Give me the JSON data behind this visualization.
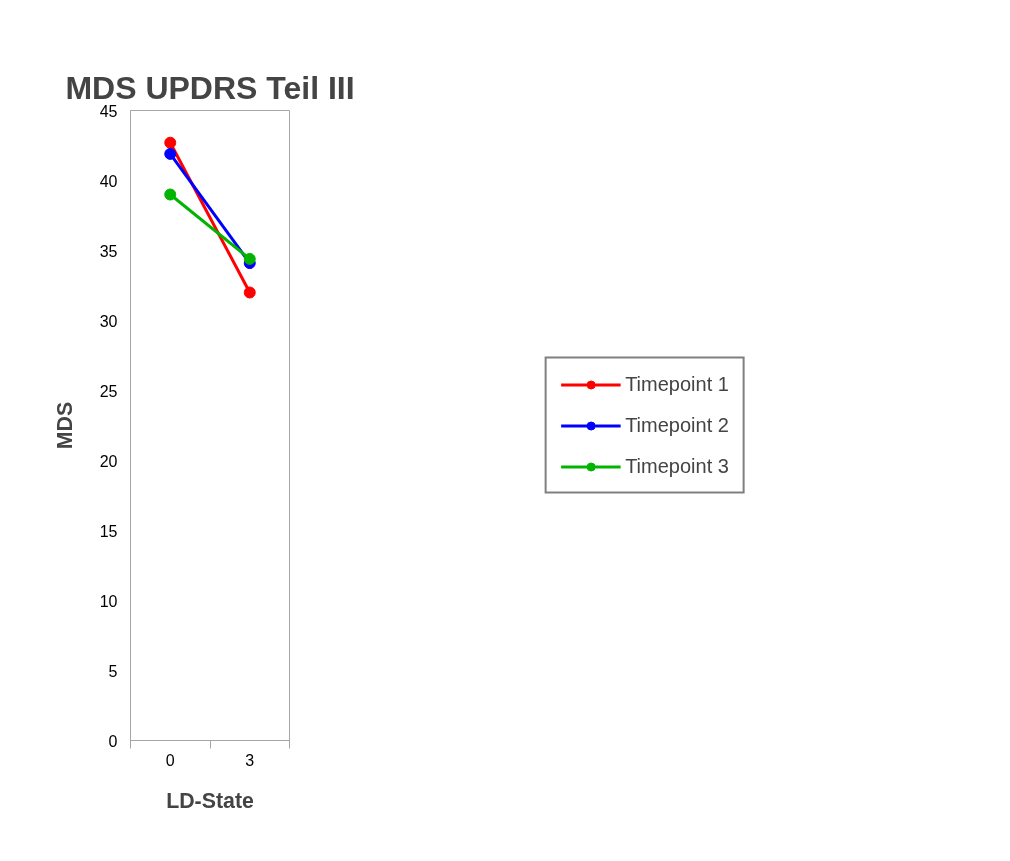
{
  "chart_data": {
    "type": "line",
    "title": "MDS UPDRS Teil III",
    "xlabel": "LD-State",
    "ylabel": "MDS",
    "categories": [
      "0",
      "3"
    ],
    "series": [
      {
        "name": "Timepoint 1",
        "color": "#ff0000",
        "values": [
          42.7,
          32.0
        ]
      },
      {
        "name": "Timepoint 2",
        "color": "#0000ff",
        "values": [
          41.9,
          34.1
        ]
      },
      {
        "name": "Timepoint 3",
        "color": "#00b400",
        "values": [
          39.0,
          34.4
        ]
      }
    ],
    "ylim": [
      0,
      45
    ],
    "yticks": [
      0,
      5,
      10,
      15,
      20,
      25,
      30,
      35,
      40,
      45
    ],
    "grid": false,
    "legend": "right",
    "marker": "circle",
    "line_style": "solid"
  }
}
